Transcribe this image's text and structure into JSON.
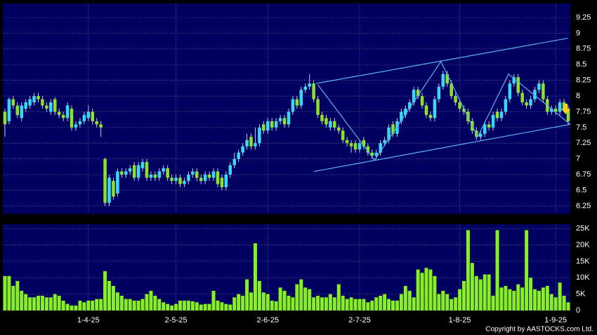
{
  "chart_data": [
    {
      "type": "candlestick",
      "up_color": "#38d8f8",
      "down_color": "#8ee02a",
      "trend_color": "#5ab4f0",
      "xlim": [
        -0.5,
        135.5
      ],
      "ylim": [
        6.127,
        9.473
      ],
      "yticks": [
        6.25,
        6.5,
        6.75,
        7,
        7.25,
        7.5,
        7.75,
        8,
        8.25,
        8.5,
        8.75,
        9,
        9.25
      ],
      "xticks": [
        20,
        41,
        63,
        85,
        109,
        132
      ],
      "grid": true,
      "open": [
        7.75,
        7.6,
        7.95,
        7.85,
        7.65,
        7.8,
        7.85,
        7.9,
        8.0,
        7.95,
        7.85,
        7.75,
        7.95,
        7.75,
        7.7,
        7.65,
        7.8,
        7.5,
        7.55,
        7.6,
        7.65,
        7.75,
        7.6,
        7.55,
        7.0,
        6.3,
        6.65,
        6.45,
        6.8,
        6.75,
        6.8,
        6.9,
        6.7,
        6.85,
        6.95,
        6.7,
        6.75,
        6.7,
        6.8,
        6.85,
        6.7,
        6.65,
        6.7,
        6.6,
        6.65,
        6.75,
        6.8,
        6.7,
        6.65,
        6.75,
        6.7,
        6.8,
        6.7,
        6.55,
        6.75,
        6.9,
        7.0,
        7.1,
        7.2,
        7.35,
        7.2,
        7.25,
        7.55,
        7.45,
        7.6,
        7.5,
        7.6,
        7.65,
        7.55,
        7.75,
        7.95,
        7.85,
        8.1,
        8.15,
        8.2,
        7.95,
        7.7,
        7.65,
        7.5,
        7.6,
        7.5,
        7.45,
        7.3,
        7.25,
        7.25,
        7.15,
        7.3,
        7.2,
        7.1,
        7.05,
        7.1,
        7.25,
        7.3,
        7.55,
        7.4,
        7.6,
        7.7,
        7.8,
        7.9,
        8.1,
        8.0,
        7.85,
        7.7,
        7.65,
        7.95,
        8.15,
        8.35,
        8.2,
        8.0,
        7.9,
        7.8,
        7.75,
        7.6,
        7.45,
        7.35,
        7.4,
        7.55,
        7.5,
        7.75,
        7.65,
        7.75,
        7.95,
        8.2,
        8.3,
        8.05,
        7.9,
        7.85,
        7.95,
        8.1,
        8.2,
        7.95,
        7.75,
        7.8,
        7.75,
        7.9,
        7.8
      ],
      "high": [
        7.8,
        7.98,
        8.0,
        7.9,
        7.9,
        7.95,
        8.0,
        8.05,
        8.05,
        8.0,
        7.9,
        7.95,
        7.98,
        7.8,
        7.75,
        7.9,
        7.85,
        7.6,
        7.65,
        7.75,
        7.85,
        7.8,
        7.65,
        7.6,
        7.02,
        6.75,
        6.7,
        6.85,
        6.85,
        6.85,
        6.9,
        6.95,
        6.95,
        7.0,
        7.0,
        6.8,
        6.8,
        6.85,
        6.9,
        6.9,
        6.75,
        6.75,
        6.75,
        6.7,
        6.8,
        6.85,
        6.85,
        6.75,
        6.8,
        6.8,
        6.85,
        6.85,
        6.75,
        6.8,
        6.95,
        7.1,
        7.15,
        7.25,
        7.4,
        7.4,
        7.5,
        7.55,
        7.6,
        7.65,
        7.65,
        7.65,
        7.7,
        7.7,
        7.8,
        8.0,
        8.0,
        8.15,
        8.2,
        8.35,
        8.25,
        8.0,
        7.75,
        7.7,
        7.65,
        7.65,
        7.55,
        7.5,
        7.35,
        7.3,
        7.3,
        7.3,
        7.35,
        7.25,
        7.15,
        7.15,
        7.3,
        7.35,
        7.55,
        7.6,
        7.65,
        7.8,
        7.85,
        7.95,
        8.15,
        8.15,
        8.05,
        7.9,
        7.75,
        8.0,
        8.2,
        8.4,
        8.4,
        8.25,
        8.05,
        7.95,
        7.85,
        7.8,
        7.65,
        7.5,
        7.45,
        7.6,
        7.6,
        7.75,
        7.8,
        7.8,
        8.0,
        8.25,
        8.35,
        8.35,
        8.1,
        7.95,
        8.0,
        8.15,
        8.25,
        8.25,
        8.0,
        7.85,
        7.85,
        7.95,
        7.95,
        7.85
      ],
      "low": [
        7.35,
        7.55,
        7.8,
        7.65,
        7.6,
        7.75,
        7.8,
        7.85,
        7.9,
        7.8,
        7.75,
        7.7,
        7.7,
        7.65,
        7.6,
        7.6,
        7.45,
        7.45,
        7.5,
        7.55,
        7.6,
        7.55,
        7.5,
        7.35,
        6.25,
        6.25,
        6.35,
        6.4,
        6.7,
        6.7,
        6.75,
        6.65,
        6.65,
        6.8,
        6.65,
        6.65,
        6.65,
        6.65,
        6.75,
        6.65,
        6.6,
        6.6,
        6.55,
        6.55,
        6.6,
        6.7,
        6.65,
        6.6,
        6.6,
        6.65,
        6.65,
        6.55,
        6.5,
        6.5,
        6.7,
        6.85,
        6.95,
        7.05,
        7.15,
        7.15,
        7.15,
        7.2,
        7.4,
        7.4,
        7.45,
        7.45,
        7.55,
        7.5,
        7.5,
        7.7,
        7.8,
        7.8,
        8.05,
        8.1,
        7.9,
        7.65,
        7.55,
        7.5,
        7.45,
        7.45,
        7.4,
        7.25,
        7.2,
        7.1,
        7.1,
        7.1,
        7.15,
        7.05,
        7.0,
        7.0,
        7.05,
        7.2,
        7.25,
        7.35,
        7.35,
        7.55,
        7.65,
        7.75,
        7.85,
        7.95,
        7.8,
        7.65,
        7.6,
        7.6,
        7.9,
        8.1,
        8.15,
        7.95,
        7.85,
        7.75,
        7.7,
        7.55,
        7.4,
        7.3,
        7.3,
        7.35,
        7.45,
        7.45,
        7.6,
        7.6,
        7.7,
        7.9,
        8.15,
        8.0,
        7.85,
        7.8,
        7.8,
        7.9,
        8.05,
        7.9,
        7.7,
        7.7,
        7.7,
        7.7,
        7.75,
        7.55
      ],
      "close": [
        7.55,
        7.95,
        7.85,
        7.7,
        7.85,
        7.9,
        7.95,
        8.0,
        7.95,
        7.85,
        7.8,
        7.9,
        7.75,
        7.7,
        7.65,
        7.85,
        7.5,
        7.55,
        7.6,
        7.7,
        7.75,
        7.6,
        7.55,
        7.5,
        6.3,
        6.7,
        6.4,
        6.8,
        6.75,
        6.8,
        6.85,
        6.7,
        6.9,
        6.95,
        6.7,
        6.75,
        6.7,
        6.8,
        6.85,
        6.7,
        6.65,
        6.7,
        6.6,
        6.65,
        6.75,
        6.8,
        6.7,
        6.65,
        6.75,
        6.7,
        6.8,
        6.6,
        6.55,
        6.75,
        6.9,
        7.0,
        7.1,
        7.2,
        7.3,
        7.2,
        7.25,
        7.5,
        7.45,
        7.6,
        7.5,
        7.6,
        7.65,
        7.55,
        7.75,
        7.95,
        7.85,
        8.1,
        8.15,
        8.2,
        7.95,
        7.7,
        7.6,
        7.55,
        7.6,
        7.5,
        7.45,
        7.3,
        7.25,
        7.2,
        7.15,
        7.25,
        7.2,
        7.1,
        7.05,
        7.1,
        7.25,
        7.3,
        7.5,
        7.4,
        7.6,
        7.75,
        7.8,
        7.9,
        8.1,
        8.0,
        7.85,
        7.7,
        7.65,
        7.95,
        8.15,
        8.35,
        8.2,
        8.0,
        7.9,
        7.8,
        7.75,
        7.6,
        7.45,
        7.35,
        7.4,
        7.55,
        7.5,
        7.7,
        7.65,
        7.75,
        7.95,
        8.2,
        8.3,
        8.05,
        7.9,
        7.85,
        7.95,
        8.1,
        8.2,
        7.95,
        7.75,
        7.8,
        7.75,
        7.9,
        7.8,
        7.6
      ],
      "trendlines": [
        {
          "x": [
            74.6,
            134.9
          ],
          "y": [
            8.2,
            8.92
          ]
        },
        {
          "x": [
            74.1,
            135.5
          ],
          "y": [
            6.8,
            7.55
          ]
        },
        {
          "x": [
            75.0,
            88.6,
            104.5,
            113.3,
            120.7,
            135.5
          ],
          "y": [
            8.18,
            6.98,
            8.55,
            7.35,
            8.35,
            7.55
          ]
        }
      ]
    },
    {
      "type": "bar",
      "color": "#88f020",
      "xlim": [
        -0.5,
        135.5
      ],
      "ylim": [
        0,
        26300
      ],
      "grid": true,
      "yticks": [
        0,
        {
          "value": 5000,
          "label": "5K"
        },
        {
          "value": 10000,
          "label": "10K"
        },
        {
          "value": 15000,
          "label": "15K"
        },
        {
          "value": 20000,
          "label": "20K"
        },
        {
          "value": 25000,
          "label": "25K"
        }
      ],
      "xticks": [
        {
          "value": 20,
          "label": "1-4-25"
        },
        {
          "value": 41,
          "label": "2-5-25"
        },
        {
          "value": 63,
          "label": "2-6-25"
        },
        {
          "value": 85,
          "label": "2-7-25"
        },
        {
          "value": 109,
          "label": "1-8-25"
        },
        {
          "value": 132,
          "label": "1-9-25"
        }
      ],
      "values": [
        10500,
        10500,
        7500,
        9000,
        6000,
        5000,
        4000,
        4000,
        4500,
        4500,
        4000,
        4000,
        5000,
        4500,
        3000,
        2000,
        1500,
        1500,
        3000,
        2500,
        3000,
        3000,
        3500,
        3500,
        12000,
        9000,
        7500,
        5500,
        4500,
        3500,
        3500,
        3000,
        3000,
        3500,
        5000,
        6000,
        4500,
        3500,
        2500,
        2000,
        1500,
        2000,
        3000,
        3000,
        3000,
        2800,
        2500,
        1800,
        2000,
        2000,
        6000,
        3000,
        2500,
        2000,
        1800,
        4000,
        5000,
        4500,
        9500,
        5500,
        20500,
        9000,
        5500,
        5000,
        3000,
        2800,
        7000,
        6000,
        4500,
        4000,
        8000,
        9500,
        7000,
        6500,
        4000,
        4500,
        4000,
        4000,
        5000,
        4000,
        8000,
        4500,
        3500,
        4000,
        3500,
        3500,
        3500,
        2500,
        3000,
        4000,
        4500,
        5000,
        3500,
        3000,
        3000,
        5000,
        7500,
        6000,
        4000,
        12500,
        11500,
        13000,
        12500,
        10500,
        5000,
        6000,
        5000,
        3500,
        4000,
        6500,
        9000,
        24500,
        14500,
        10500,
        9500,
        11000,
        11000,
        4500,
        24500,
        7000,
        7500,
        6500,
        6000,
        8000,
        7000,
        24500,
        10000,
        6500,
        6000,
        7000,
        7500,
        5000,
        4000,
        8500,
        4500,
        2500
      ]
    }
  ],
  "credit": "Copyright by AASTOCKS.com Ltd."
}
